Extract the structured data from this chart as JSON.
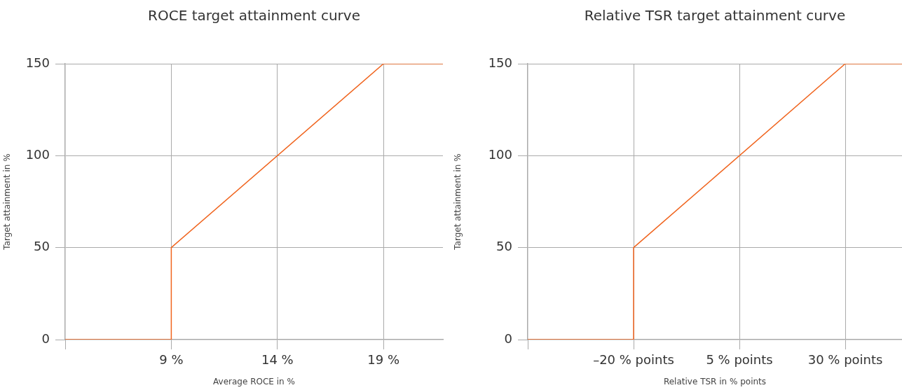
{
  "chart_data": [
    {
      "type": "line",
      "title": "ROCE target attainment curve",
      "xlabel": "Average ROCE in %",
      "ylabel": "Target attainment in %",
      "x": [
        4,
        9,
        9,
        19,
        21.8
      ],
      "series": [
        {
          "color": "#f0641e",
          "values": [
            0,
            0,
            50,
            150,
            150
          ]
        }
      ],
      "xlim": [
        4,
        21.8
      ],
      "xticks": [
        {
          "value": 4,
          "label": null
        },
        {
          "value": 9,
          "label": "9 %"
        },
        {
          "value": 14,
          "label": "14 %"
        },
        {
          "value": 19,
          "label": "19 %"
        }
      ],
      "ylim": [
        0,
        150
      ],
      "yticks": [
        0,
        50,
        100,
        150
      ],
      "grid": true,
      "marker": "none",
      "line_style": "solid"
    },
    {
      "type": "line",
      "title": "Relative TSR target attainment curve",
      "xlabel": "Relative TSR in % points",
      "ylabel": "Target attainment in %",
      "x": [
        -45,
        -20,
        -20,
        30,
        43.4
      ],
      "series": [
        {
          "color": "#f0641e",
          "values": [
            0,
            0,
            50,
            150,
            150
          ]
        }
      ],
      "xlim": [
        -45,
        43.4
      ],
      "xticks": [
        {
          "value": -45,
          "label": null
        },
        {
          "value": -20,
          "label": "–20 % points"
        },
        {
          "value": 5,
          "label": "5 % points"
        },
        {
          "value": 30,
          "label": "30 % points"
        }
      ],
      "ylim": [
        0,
        150
      ],
      "yticks": [
        0,
        50,
        100,
        150
      ],
      "grid": true,
      "marker": "none",
      "line_style": "solid"
    }
  ]
}
